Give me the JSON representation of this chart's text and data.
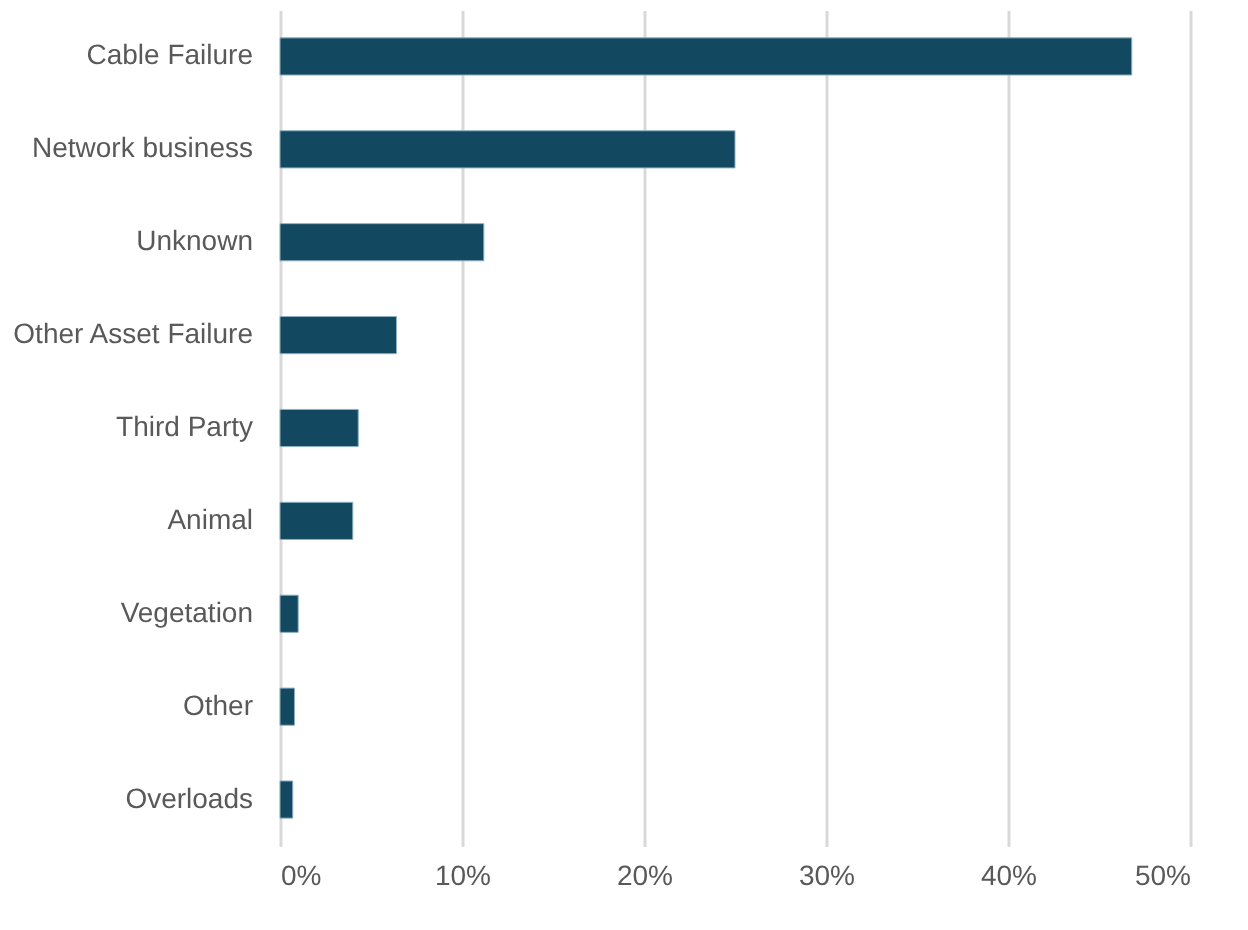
{
  "chart_data": {
    "type": "bar",
    "orientation": "horizontal",
    "categories": [
      "Cable Failure",
      "Network business",
      "Unknown",
      "Other Asset Failure",
      "Third Party",
      "Animal",
      "Vegetation",
      "Other",
      "Overloads"
    ],
    "values": [
      46.8,
      25.0,
      11.2,
      6.4,
      4.3,
      4.0,
      1.0,
      0.8,
      0.7
    ],
    "color": "#124860",
    "xlim": [
      0,
      50
    ],
    "xticks": [
      {
        "value": 0,
        "label": "0%"
      },
      {
        "value": 10,
        "label": "10%"
      },
      {
        "value": 20,
        "label": "20%"
      },
      {
        "value": 30,
        "label": "30%"
      },
      {
        "value": 40,
        "label": "40%"
      },
      {
        "value": 50,
        "label": "50%"
      }
    ],
    "grid": "x"
  }
}
